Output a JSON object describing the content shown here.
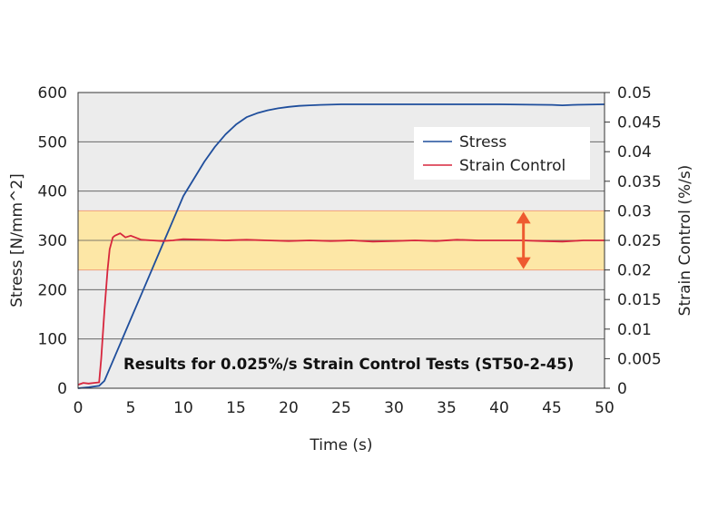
{
  "chart_data": {
    "type": "line",
    "title": "",
    "annotation": "Results for 0.025%/s Strain Control Tests (ST50-2-45)",
    "xlabel": "Time (s)",
    "ylabel": "Stress [N/mm^2]",
    "y2label": "Strain Control (%/s)",
    "xlim": [
      0,
      50
    ],
    "ylim": [
      0,
      600
    ],
    "y2lim": [
      0,
      0.05
    ],
    "xticks": [
      "0",
      "5",
      "10",
      "15",
      "20",
      "25",
      "30",
      "35",
      "40",
      "45",
      "50"
    ],
    "yticks": [
      "0",
      "100",
      "200",
      "300",
      "400",
      "500",
      "600"
    ],
    "y2ticks": [
      "0",
      "0.005",
      "0.01",
      "0.015",
      "0.02",
      "0.025",
      "0.03",
      "0.035",
      "0.04",
      "0.045",
      "0.05"
    ],
    "grid": "horizontal",
    "legend_position": "top-right",
    "band": {
      "axis": "y2",
      "from": 0.02,
      "to": 0.03,
      "color": "#fde7a6",
      "border": "#f0a27e"
    },
    "arrow_x": 42.3,
    "series": [
      {
        "name": "Stress",
        "axis": "y",
        "color": "#1f4e9c",
        "x": [
          0,
          1,
          2,
          2.5,
          3,
          4,
          5,
          6,
          7,
          8,
          9,
          10,
          11,
          12,
          13,
          14,
          15,
          16,
          17,
          18,
          19,
          20,
          21,
          22,
          23,
          25,
          30,
          35,
          40,
          45,
          46,
          47,
          50
        ],
        "y": [
          0,
          2,
          5,
          15,
          40,
          90,
          140,
          190,
          240,
          290,
          340,
          390,
          425,
          460,
          490,
          515,
          535,
          550,
          558,
          564,
          568,
          571,
          573,
          574,
          575,
          576,
          576,
          576,
          576,
          575,
          574,
          575,
          576
        ]
      },
      {
        "name": "Strain Control",
        "axis": "y2",
        "color": "#d7263d",
        "x": [
          0,
          0.5,
          1,
          1.5,
          2,
          2.2,
          2.5,
          2.8,
          3,
          3.3,
          3.5,
          4,
          4.5,
          5,
          6,
          7,
          8,
          9,
          10,
          12,
          14,
          16,
          18,
          20,
          22,
          24,
          26,
          28,
          30,
          32,
          34,
          36,
          38,
          40,
          42,
          44,
          46,
          48,
          50
        ],
        "y": [
          0.0006,
          0.0009,
          0.0008,
          0.0009,
          0.001,
          0.005,
          0.013,
          0.02,
          0.0235,
          0.0255,
          0.0258,
          0.0262,
          0.0255,
          0.0258,
          0.0251,
          0.025,
          0.0249,
          0.025,
          0.0252,
          0.0251,
          0.025,
          0.0251,
          0.025,
          0.0249,
          0.025,
          0.0249,
          0.025,
          0.0248,
          0.0249,
          0.025,
          0.0249,
          0.0251,
          0.025,
          0.025,
          0.025,
          0.0249,
          0.0248,
          0.025,
          0.025
        ]
      }
    ]
  }
}
